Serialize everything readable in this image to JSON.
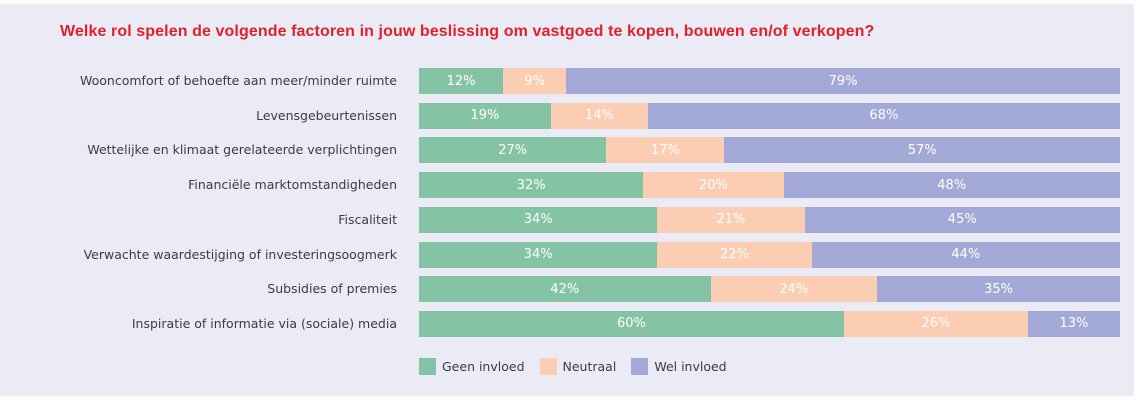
{
  "chart_data": {
    "type": "bar",
    "orientation": "horizontal",
    "stacked": "100%",
    "title": "Welke rol spelen de volgende factoren in jouw beslissing om vastgoed te kopen, bouwen en/of verkopen?",
    "xlabel": "",
    "ylabel": "",
    "xlim": [
      0,
      100
    ],
    "grid": false,
    "legend_position": "bottom-left",
    "categories": [
      "Wooncomfort of behoefte aan meer/minder ruimte",
      "Levensgebeurtenissen",
      "Wettelijke en klimaat gerelateerde verplichtingen",
      "Financiële marktomstandigheden",
      "Fiscaliteit",
      "Verwachte waardestijging of investeringsoogmerk",
      "Subsidies of premies",
      "Inspiratie of informatie via (sociale) media"
    ],
    "series": [
      {
        "name": "Geen invloed",
        "color": "#84c4a4",
        "values": [
          12,
          19,
          27,
          32,
          34,
          34,
          42,
          60
        ]
      },
      {
        "name": "Neutraal",
        "color": "#fbcdb2",
        "values": [
          9,
          14,
          17,
          20,
          21,
          22,
          24,
          26
        ]
      },
      {
        "name": "Wel invloed",
        "color": "#a3a9d6",
        "values": [
          79,
          68,
          57,
          48,
          45,
          44,
          35,
          13
        ]
      }
    ],
    "value_suffix": "%"
  },
  "colors": {
    "title": "#e0202b",
    "panel_background": "#ebebf5",
    "label_text": "#3a3a4a",
    "data_label_text": "#ffffff"
  }
}
